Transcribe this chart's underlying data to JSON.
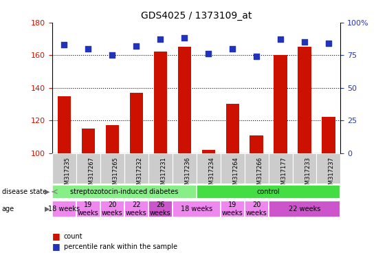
{
  "title": "GDS4025 / 1373109_at",
  "samples": [
    "GSM317235",
    "GSM317267",
    "GSM317265",
    "GSM317232",
    "GSM317231",
    "GSM317236",
    "GSM317234",
    "GSM317264",
    "GSM317266",
    "GSM317177",
    "GSM317233",
    "GSM317237"
  ],
  "count_values": [
    135,
    115,
    117,
    137,
    162,
    165,
    102,
    130,
    111,
    160,
    165,
    122
  ],
  "percentile_values": [
    83,
    80,
    75,
    82,
    87,
    88,
    76,
    80,
    74,
    87,
    85,
    84
  ],
  "ylim_left": [
    100,
    180
  ],
  "ylim_right": [
    0,
    100
  ],
  "yticks_left": [
    100,
    120,
    140,
    160,
    180
  ],
  "yticks_right": [
    0,
    25,
    50,
    75,
    100
  ],
  "bar_color": "#cc1100",
  "dot_color": "#2233bb",
  "disease_state_groups": [
    {
      "label": "streptozotocin-induced diabetes",
      "start": 0,
      "end": 6,
      "color": "#88ee88"
    },
    {
      "label": "control",
      "start": 6,
      "end": 12,
      "color": "#44dd44"
    }
  ],
  "age_groups": [
    {
      "label": "18 weeks",
      "start": 0,
      "end": 1,
      "color": "#ee88ee"
    },
    {
      "label": "19\nweeks",
      "start": 1,
      "end": 2,
      "color": "#ee88ee"
    },
    {
      "label": "20\nweeks",
      "start": 2,
      "end": 3,
      "color": "#ee88ee"
    },
    {
      "label": "22\nweeks",
      "start": 3,
      "end": 4,
      "color": "#ee88ee"
    },
    {
      "label": "26\nweeks",
      "start": 4,
      "end": 5,
      "color": "#cc55cc"
    },
    {
      "label": "18 weeks",
      "start": 5,
      "end": 7,
      "color": "#ee88ee"
    },
    {
      "label": "19\nweeks",
      "start": 7,
      "end": 8,
      "color": "#ee88ee"
    },
    {
      "label": "20\nweeks",
      "start": 8,
      "end": 9,
      "color": "#ee88ee"
    },
    {
      "label": "22 weeks",
      "start": 9,
      "end": 12,
      "color": "#cc55cc"
    }
  ],
  "background_color": "#ffffff",
  "tick_label_color_left": "#cc1100",
  "tick_label_color_right": "#2233bb",
  "bar_width": 0.55,
  "dot_size": 30
}
